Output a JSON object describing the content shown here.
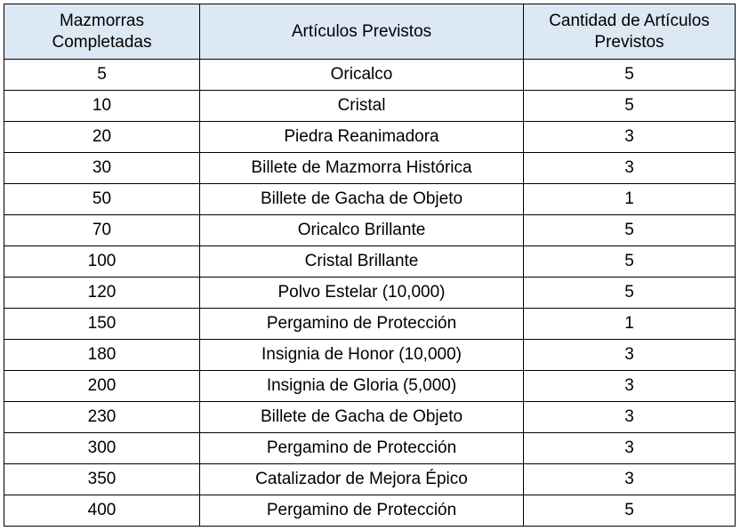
{
  "table": {
    "headers": [
      "Mazmorras Completadas",
      "Artículos Previstos",
      "Cantidad de Artículos Previstos"
    ],
    "header_bg": "#dde8f5",
    "rows": [
      [
        "5",
        "Oricalco",
        "5"
      ],
      [
        "10",
        "Cristal",
        "5"
      ],
      [
        "20",
        "Piedra Reanimadora",
        "3"
      ],
      [
        "30",
        "Billete de Mazmorra Histórica",
        "3"
      ],
      [
        "50",
        "Billete de Gacha de Objeto",
        "1"
      ],
      [
        "70",
        "Oricalco Brillante",
        "5"
      ],
      [
        "100",
        "Cristal Brillante",
        "5"
      ],
      [
        "120",
        "Polvo Estelar (10,000)",
        "5"
      ],
      [
        "150",
        "Pergamino de Protección",
        "1"
      ],
      [
        "180",
        "Insignia de Honor (10,000)",
        "3"
      ],
      [
        "200",
        "Insignia de Gloria (5,000)",
        "3"
      ],
      [
        "230",
        "Billete de Gacha de Objeto",
        "3"
      ],
      [
        "300",
        "Pergamino de Protección",
        "3"
      ],
      [
        "350",
        "Catalizador de Mejora Épico",
        "3"
      ],
      [
        "400",
        "Pergamino de Protección",
        "5"
      ]
    ]
  }
}
